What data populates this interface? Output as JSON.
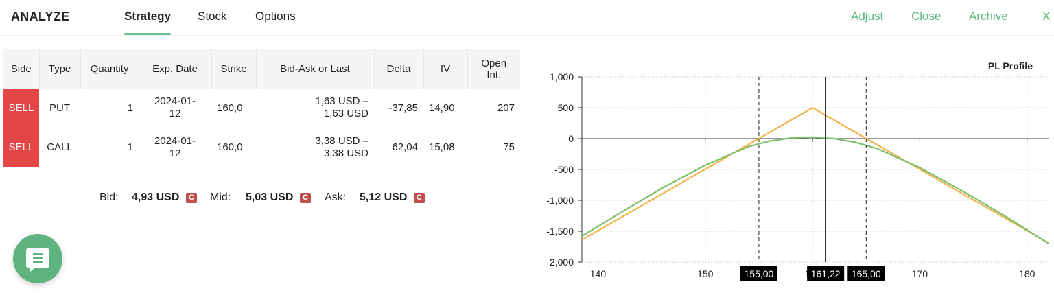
{
  "header": {
    "title": "ANALYZE",
    "tabs": [
      {
        "label": "Strategy",
        "active": true
      },
      {
        "label": "Stock",
        "active": false
      },
      {
        "label": "Options",
        "active": false
      }
    ],
    "actions": {
      "adjust": "Adjust",
      "close": "Close",
      "archive": "Archive",
      "dismiss": "X"
    }
  },
  "table": {
    "columns": [
      "Side",
      "Type",
      "Quantity",
      "Exp. Date",
      "Strike",
      "Bid-Ask or Last",
      "Delta",
      "IV",
      "Open Int."
    ],
    "rows": [
      {
        "side": "SELL",
        "type": "PUT",
        "quantity": "1",
        "exp_line1": "2024-01-",
        "exp_line2": "12",
        "strike": "160,0",
        "bidask_line1": "1,63 USD –",
        "bidask_line2": "1,63 USD",
        "delta": "-37,85",
        "iv": "14,90",
        "open_int": "207"
      },
      {
        "side": "SELL",
        "type": "CALL",
        "quantity": "1",
        "exp_line1": "2024-01-",
        "exp_line2": "12",
        "strike": "160,0",
        "bidask_line1": "3,38 USD –",
        "bidask_line2": "3,38 USD",
        "delta": "62,04",
        "iv": "15,08",
        "open_int": "75"
      }
    ]
  },
  "quote": {
    "bid_label": "Bid:",
    "bid_value": "4,93 USD",
    "mid_label": "Mid:",
    "mid_value": "5,03 USD",
    "ask_label": "Ask:",
    "ask_value": "5,12 USD",
    "badge": "C"
  },
  "chat_button": {
    "icon": "chat-icon"
  },
  "colors": {
    "accent_green": "#5cb87a",
    "sell_red": "#e24646",
    "badge_red": "#c0504d",
    "expiry_line": "#f0b44a",
    "today_line": "#7cbf6a"
  },
  "chart_data": {
    "type": "line",
    "title": "PL Profile",
    "xlabel": "",
    "ylabel": "",
    "xlim": [
      138.5,
      182
    ],
    "ylim": [
      -2000,
      1000
    ],
    "x_ticks": [
      "140",
      "150",
      "160",
      "170",
      "180"
    ],
    "y_ticks": [
      "1,000",
      "500",
      "0",
      "-500",
      "-1,000",
      "-1,500",
      "-2,000"
    ],
    "grid": true,
    "series": [
      {
        "color": "#f0b44a",
        "x": [
          138.5,
          160,
          182
        ],
        "y": [
          -1640,
          500,
          -1690
        ]
      },
      {
        "color": "#7cbf6a",
        "x": [
          138.5,
          142,
          146,
          150,
          154,
          156,
          158,
          160,
          162,
          164,
          166,
          170,
          174,
          178,
          182
        ],
        "y": [
          -1580,
          -1210,
          -800,
          -430,
          -130,
          -40,
          10,
          25,
          0,
          -60,
          -160,
          -470,
          -850,
          -1260,
          -1700
        ]
      }
    ],
    "markers": [
      {
        "x": 155,
        "label": "155,00",
        "style": "dashed"
      },
      {
        "x": 161.22,
        "label": "161,22",
        "style": "solid"
      },
      {
        "x": 165,
        "label": "165,00",
        "style": "dashed"
      }
    ]
  }
}
